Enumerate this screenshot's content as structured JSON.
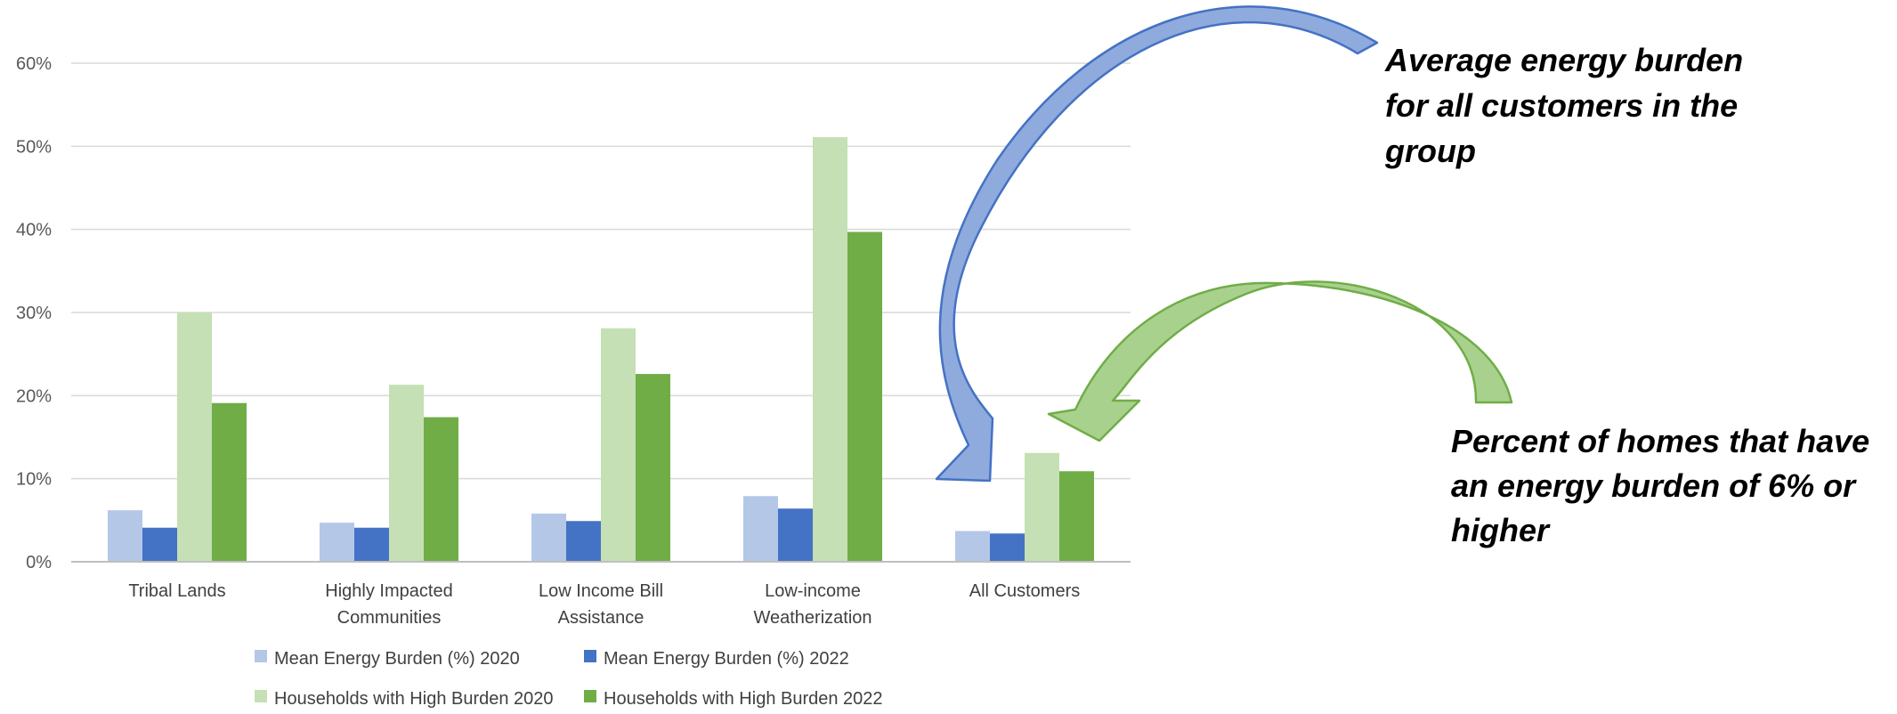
{
  "chart_data": {
    "type": "bar",
    "categories": [
      [
        "Tribal Lands"
      ],
      [
        "Highly Impacted",
        "Communities"
      ],
      [
        "Low Income Bill",
        "Assistance"
      ],
      [
        "Low-income",
        "Weatherization"
      ],
      [
        "All Customers"
      ]
    ],
    "series": [
      {
        "name": "Mean Energy Burden (%) 2020",
        "color": "#B4C7E7",
        "values": [
          6.2,
          4.7,
          5.8,
          7.9,
          3.7
        ]
      },
      {
        "name": "Mean Energy Burden (%) 2022",
        "color": "#4472C4",
        "values": [
          4.1,
          4.1,
          4.9,
          6.4,
          3.4
        ]
      },
      {
        "name": "Households with High Burden 2020",
        "color": "#C5E0B4",
        "values": [
          30.0,
          21.3,
          28.1,
          51.1,
          13.1
        ]
      },
      {
        "name": "Households with High Burden 2022",
        "color": "#70AD47",
        "values": [
          19.1,
          17.4,
          22.6,
          39.7,
          10.9
        ]
      }
    ],
    "y_ticks": [
      "0%",
      "10%",
      "20%",
      "30%",
      "40%",
      "50%",
      "60%"
    ],
    "ylim": [
      0,
      60
    ],
    "grid": true,
    "legend_position": "bottom",
    "title": "",
    "xlabel": "",
    "ylabel": ""
  },
  "annotations": {
    "mean_burden": [
      "Average  energy  burden",
      "for all  customers  in the",
      "group"
    ],
    "high_burden": [
      "Percent  of homes  that have",
      "an energy  burden  of 6% or",
      "higher"
    ]
  },
  "colors": {
    "grid": "#D9D9D9",
    "axis": "#BFBFBF",
    "blue_arrow_fill": "#8FAADC",
    "blue_arrow_stroke": "#4472C4",
    "green_arrow_fill": "#A9D18E",
    "green_arrow_stroke": "#70AD47"
  }
}
